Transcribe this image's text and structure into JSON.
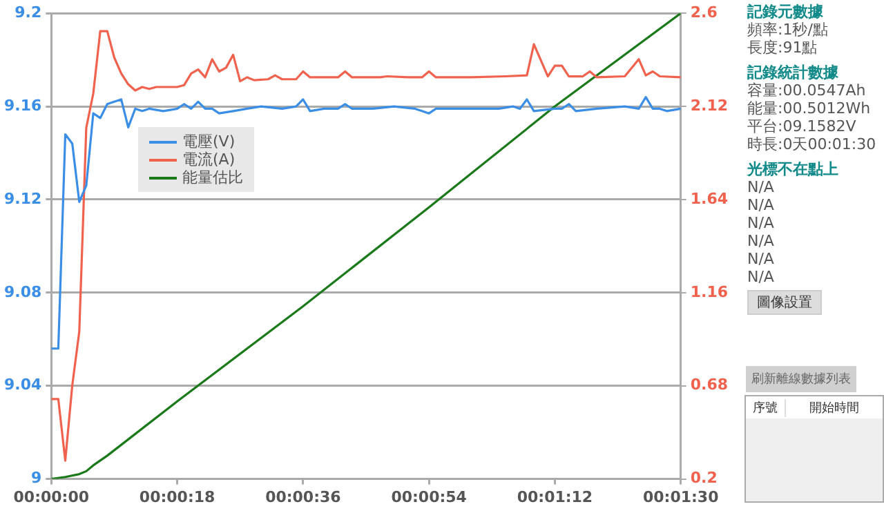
{
  "chart_data": {
    "type": "line",
    "xlim": [
      0,
      90
    ],
    "xticks": [
      {
        "value": 0,
        "label": "00:00:00"
      },
      {
        "value": 18,
        "label": "00:00:18"
      },
      {
        "value": 36,
        "label": "00:00:36"
      },
      {
        "value": 54,
        "label": "00:00:54"
      },
      {
        "value": 72,
        "label": "00:01:12"
      },
      {
        "value": 90,
        "label": "00:01:30"
      }
    ],
    "ylim": [
      9,
      9.2
    ],
    "yticks": [
      9,
      9.04,
      9.08,
      9.12,
      9.16,
      9.2
    ],
    "y2lim": [
      0.2,
      2.6
    ],
    "y2ticks": [
      0.2,
      0.68,
      1.16,
      1.64,
      2.12,
      2.6
    ],
    "grid": "y",
    "legend": "top left",
    "marker": "none",
    "line_style": "solid",
    "series": [
      {
        "name": "電壓(V)",
        "color": "#3a8ee6",
        "x": [
          0,
          1,
          2,
          3,
          4,
          5,
          6,
          7,
          8,
          9,
          10,
          11,
          12,
          13,
          14,
          16,
          18,
          19,
          20,
          21,
          22,
          23,
          24,
          26,
          28,
          30,
          33,
          35,
          36,
          37,
          39,
          41,
          42,
          43,
          46,
          49,
          52,
          53,
          54,
          55,
          58,
          61,
          64,
          66,
          67,
          68,
          69,
          72,
          73,
          74,
          75,
          78,
          82,
          84,
          85,
          86,
          87,
          88,
          90
        ],
        "values": [
          9.056,
          9.056,
          9.148,
          9.144,
          9.119,
          9.126,
          9.157,
          9.155,
          9.161,
          9.162,
          9.163,
          9.151,
          9.159,
          9.158,
          9.159,
          9.158,
          9.159,
          9.161,
          9.159,
          9.162,
          9.159,
          9.159,
          9.157,
          9.158,
          9.159,
          9.16,
          9.159,
          9.16,
          9.163,
          9.158,
          9.159,
          9.159,
          9.161,
          9.159,
          9.159,
          9.16,
          9.159,
          9.158,
          9.157,
          9.159,
          9.159,
          9.159,
          9.159,
          9.16,
          9.159,
          9.163,
          9.158,
          9.159,
          9.159,
          9.161,
          9.158,
          9.159,
          9.16,
          9.159,
          9.164,
          9.159,
          9.159,
          9.158,
          9.159
        ]
      },
      {
        "name": "電流(A)",
        "color": "#f0624d",
        "axis": "y2",
        "x": [
          0,
          1,
          2,
          3,
          4,
          5,
          6,
          7,
          8,
          9,
          10,
          11,
          12,
          13,
          14,
          15,
          18,
          19,
          20,
          21,
          22,
          23,
          24,
          25,
          26,
          27,
          28,
          29,
          31,
          32,
          33,
          35,
          36,
          37,
          41,
          42,
          43,
          47,
          48,
          51,
          53,
          54,
          55,
          60,
          65,
          68,
          69,
          71,
          72,
          73,
          74,
          76,
          77,
          78,
          82,
          84,
          85,
          86,
          87,
          90
        ],
        "values": [
          0.612,
          0.612,
          0.294,
          0.683,
          0.959,
          2.01,
          2.186,
          2.508,
          2.508,
          2.372,
          2.29,
          2.234,
          2.202,
          2.22,
          2.21,
          2.22,
          2.22,
          2.23,
          2.29,
          2.31,
          2.27,
          2.363,
          2.3,
          2.32,
          2.386,
          2.25,
          2.27,
          2.255,
          2.26,
          2.28,
          2.26,
          2.26,
          2.3,
          2.27,
          2.27,
          2.3,
          2.27,
          2.27,
          2.275,
          2.27,
          2.27,
          2.3,
          2.27,
          2.27,
          2.275,
          2.28,
          2.44,
          2.275,
          2.33,
          2.33,
          2.275,
          2.275,
          2.3,
          2.27,
          2.275,
          2.363,
          2.28,
          2.3,
          2.275,
          2.27
        ]
      },
      {
        "name": "能量估比",
        "color": "#1a7a1a",
        "axis": "y2",
        "x": [
          0,
          2,
          4,
          5,
          6,
          8,
          18,
          36,
          54,
          72,
          90
        ],
        "values": [
          0.2,
          0.21,
          0.225,
          0.24,
          0.27,
          0.32,
          0.6,
          1.09,
          1.6,
          2.12,
          2.6
        ]
      }
    ],
    "annotations": [
      "記錄元數據",
      "頻率:1秒/點",
      "長度:91點",
      "記錄統計數據",
      "容量:00.0547Ah",
      "能量:00.5012Wh",
      "平台:09.1582V",
      "時長:0天00:01:30",
      "光標不在點上",
      "N/A",
      "N/A",
      "N/A",
      "N/A",
      "N/A",
      "N/A",
      "圖像設置",
      "刷新離線數據列表",
      "序號",
      "開始時間"
    ]
  }
}
